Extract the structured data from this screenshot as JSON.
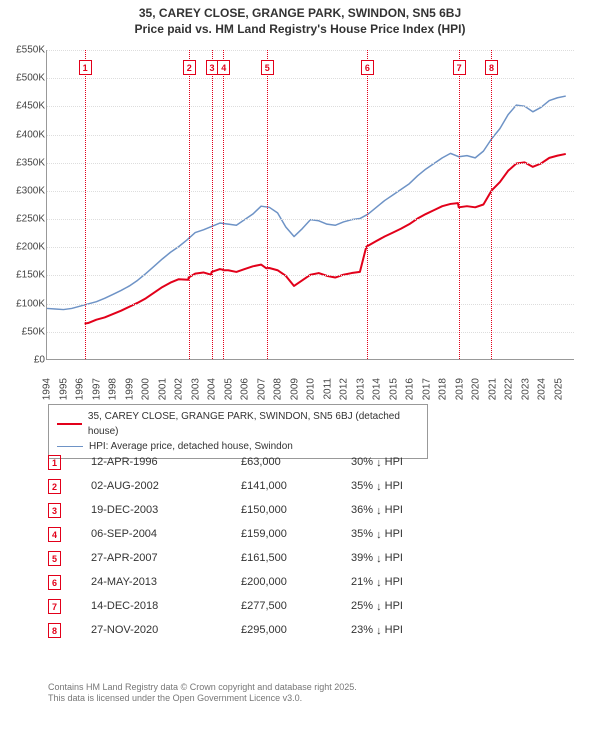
{
  "title": {
    "line1": "35, CAREY CLOSE, GRANGE PARK, SWINDON, SN5 6BJ",
    "line2": "Price paid vs. HM Land Registry's House Price Index (HPI)"
  },
  "chart": {
    "type": "line",
    "background_color": "#ffffff",
    "grid_color": "#dddddd",
    "axis_color": "#999999",
    "label_color": "#444444",
    "label_fontsize": 10,
    "xlim": [
      1994,
      2026
    ],
    "ylim": [
      0,
      550000
    ],
    "ytick_step": 50000,
    "ytick_prefix": "£",
    "ytick_suffix": "K",
    "ytick_divisor": 1000,
    "xticks": [
      1994,
      1995,
      1996,
      1997,
      1998,
      1999,
      2000,
      2001,
      2002,
      2003,
      2004,
      2005,
      2006,
      2007,
      2008,
      2009,
      2010,
      2011,
      2012,
      2013,
      2014,
      2015,
      2016,
      2017,
      2018,
      2019,
      2020,
      2021,
      2022,
      2023,
      2024,
      2025
    ],
    "series": [
      {
        "id": "property",
        "label": "35, CAREY CLOSE, GRANGE PARK, SWINDON, SN5 6BJ (detached house)",
        "color": "#e2001a",
        "line_width": 2,
        "data": [
          [
            1996.28,
            63000
          ],
          [
            1996.5,
            64000
          ],
          [
            1997,
            70000
          ],
          [
            1997.5,
            74000
          ],
          [
            1998,
            80000
          ],
          [
            1998.5,
            86000
          ],
          [
            1999,
            93000
          ],
          [
            1999.5,
            100000
          ],
          [
            2000,
            108000
          ],
          [
            2000.5,
            118000
          ],
          [
            2001,
            128000
          ],
          [
            2001.5,
            136000
          ],
          [
            2002,
            142000
          ],
          [
            2002.58,
            141000
          ],
          [
            2002.6,
            145000
          ],
          [
            2003,
            152000
          ],
          [
            2003.5,
            154000
          ],
          [
            2003.96,
            150000
          ],
          [
            2003.97,
            152000
          ],
          [
            2004,
            155000
          ],
          [
            2004.5,
            160000
          ],
          [
            2004.68,
            159000
          ],
          [
            2004.7,
            158000
          ],
          [
            2005,
            158000
          ],
          [
            2005.5,
            155000
          ],
          [
            2006,
            160000
          ],
          [
            2006.5,
            165000
          ],
          [
            2007,
            168000
          ],
          [
            2007.32,
            161500
          ],
          [
            2007.5,
            162000
          ],
          [
            2008,
            158000
          ],
          [
            2008.5,
            148000
          ],
          [
            2009,
            130000
          ],
          [
            2009.5,
            140000
          ],
          [
            2010,
            150000
          ],
          [
            2010.5,
            153000
          ],
          [
            2011,
            148000
          ],
          [
            2011.5,
            145000
          ],
          [
            2012,
            150000
          ],
          [
            2012.5,
            153000
          ],
          [
            2013,
            155000
          ],
          [
            2013.39,
            200000
          ],
          [
            2013.4,
            200000
          ],
          [
            2014,
            210000
          ],
          [
            2014.5,
            218000
          ],
          [
            2015,
            225000
          ],
          [
            2015.5,
            232000
          ],
          [
            2016,
            240000
          ],
          [
            2016.5,
            250000
          ],
          [
            2017,
            258000
          ],
          [
            2017.5,
            265000
          ],
          [
            2018,
            272000
          ],
          [
            2018.5,
            276000
          ],
          [
            2018.95,
            277500
          ],
          [
            2019,
            270000
          ],
          [
            2019.5,
            272000
          ],
          [
            2020,
            270000
          ],
          [
            2020.5,
            275000
          ],
          [
            2020.9,
            295000
          ],
          [
            2021,
            300000
          ],
          [
            2021.5,
            315000
          ],
          [
            2022,
            335000
          ],
          [
            2022.5,
            348000
          ],
          [
            2023,
            350000
          ],
          [
            2023.5,
            342000
          ],
          [
            2024,
            348000
          ],
          [
            2024.5,
            358000
          ],
          [
            2025,
            362000
          ],
          [
            2025.5,
            365000
          ]
        ]
      },
      {
        "id": "hpi",
        "label": "HPI: Average price, detached house, Swindon",
        "color": "#6e93c6",
        "line_width": 1.5,
        "data": [
          [
            1994,
            90000
          ],
          [
            1994.5,
            89000
          ],
          [
            1995,
            88000
          ],
          [
            1995.5,
            90000
          ],
          [
            1996,
            94000
          ],
          [
            1996.5,
            98000
          ],
          [
            1997,
            102000
          ],
          [
            1997.5,
            108000
          ],
          [
            1998,
            115000
          ],
          [
            1998.5,
            122000
          ],
          [
            1999,
            130000
          ],
          [
            1999.5,
            140000
          ],
          [
            2000,
            152000
          ],
          [
            2000.5,
            165000
          ],
          [
            2001,
            178000
          ],
          [
            2001.5,
            190000
          ],
          [
            2002,
            200000
          ],
          [
            2002.5,
            212000
          ],
          [
            2003,
            225000
          ],
          [
            2003.5,
            230000
          ],
          [
            2004,
            236000
          ],
          [
            2004.5,
            242000
          ],
          [
            2005,
            240000
          ],
          [
            2005.5,
            238000
          ],
          [
            2006,
            248000
          ],
          [
            2006.5,
            258000
          ],
          [
            2007,
            272000
          ],
          [
            2007.5,
            270000
          ],
          [
            2008,
            260000
          ],
          [
            2008.5,
            235000
          ],
          [
            2009,
            218000
          ],
          [
            2009.5,
            232000
          ],
          [
            2010,
            248000
          ],
          [
            2010.5,
            246000
          ],
          [
            2011,
            240000
          ],
          [
            2011.5,
            238000
          ],
          [
            2012,
            244000
          ],
          [
            2012.5,
            248000
          ],
          [
            2013,
            250000
          ],
          [
            2013.5,
            258000
          ],
          [
            2014,
            270000
          ],
          [
            2014.5,
            282000
          ],
          [
            2015,
            292000
          ],
          [
            2015.5,
            302000
          ],
          [
            2016,
            312000
          ],
          [
            2016.5,
            326000
          ],
          [
            2017,
            338000
          ],
          [
            2017.5,
            348000
          ],
          [
            2018,
            358000
          ],
          [
            2018.5,
            366000
          ],
          [
            2019,
            360000
          ],
          [
            2019.5,
            362000
          ],
          [
            2020,
            358000
          ],
          [
            2020.5,
            370000
          ],
          [
            2021,
            392000
          ],
          [
            2021.5,
            410000
          ],
          [
            2022,
            435000
          ],
          [
            2022.5,
            452000
          ],
          [
            2023,
            450000
          ],
          [
            2023.5,
            440000
          ],
          [
            2024,
            448000
          ],
          [
            2024.5,
            460000
          ],
          [
            2025,
            465000
          ],
          [
            2025.5,
            468000
          ]
        ]
      }
    ],
    "markers": [
      {
        "n": 1,
        "x": 1996.28
      },
      {
        "n": 2,
        "x": 2002.59
      },
      {
        "n": 3,
        "x": 2003.97
      },
      {
        "n": 4,
        "x": 2004.68
      },
      {
        "n": 5,
        "x": 2007.32
      },
      {
        "n": 6,
        "x": 2013.39
      },
      {
        "n": 7,
        "x": 2018.95
      },
      {
        "n": 8,
        "x": 2020.91
      }
    ],
    "marker_color": "#e2001a"
  },
  "legend": {
    "border_color": "#999999",
    "items": [
      {
        "color": "#e2001a",
        "width": 2,
        "label": "35, CAREY CLOSE, GRANGE PARK, SWINDON, SN5 6BJ (detached house)"
      },
      {
        "color": "#6e93c6",
        "width": 1.5,
        "label": "HPI: Average price, detached house, Swindon"
      }
    ]
  },
  "sales": [
    {
      "n": 1,
      "date": "12-APR-1996",
      "price": "£63,000",
      "diff": "30% ↓ HPI"
    },
    {
      "n": 2,
      "date": "02-AUG-2002",
      "price": "£141,000",
      "diff": "35% ↓ HPI"
    },
    {
      "n": 3,
      "date": "19-DEC-2003",
      "price": "£150,000",
      "diff": "36% ↓ HPI"
    },
    {
      "n": 4,
      "date": "06-SEP-2004",
      "price": "£159,000",
      "diff": "35% ↓ HPI"
    },
    {
      "n": 5,
      "date": "27-APR-2007",
      "price": "£161,500",
      "diff": "39% ↓ HPI"
    },
    {
      "n": 6,
      "date": "24-MAY-2013",
      "price": "£200,000",
      "diff": "21% ↓ HPI"
    },
    {
      "n": 7,
      "date": "14-DEC-2018",
      "price": "£277,500",
      "diff": "25% ↓ HPI"
    },
    {
      "n": 8,
      "date": "27-NOV-2020",
      "price": "£295,000",
      "diff": "23% ↓ HPI"
    }
  ],
  "footer": {
    "line1": "Contains HM Land Registry data © Crown copyright and database right 2025.",
    "line2": "This data is licensed under the Open Government Licence v3.0."
  }
}
